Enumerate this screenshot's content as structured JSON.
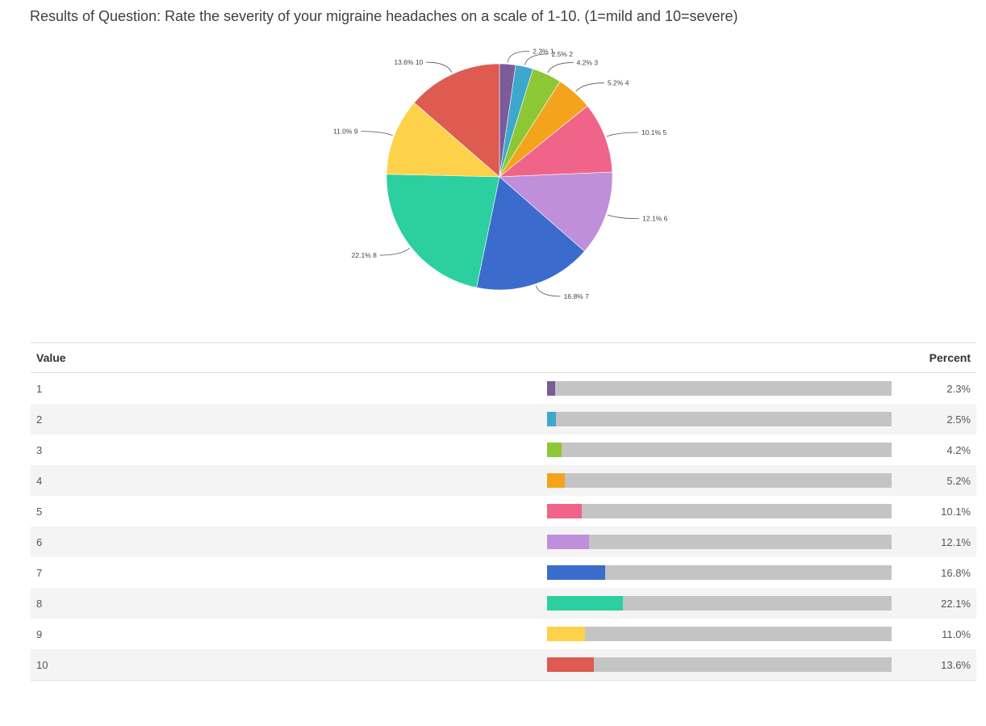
{
  "page": {
    "title": "Results of Question: Rate the severity of your migraine headaches on a scale of 1-10. (1=mild and 10=severe)"
  },
  "table": {
    "header_value": "Value",
    "header_percent": "Percent"
  },
  "chart_data": {
    "type": "pie",
    "categories": [
      "1",
      "2",
      "3",
      "4",
      "5",
      "6",
      "7",
      "8",
      "9",
      "10"
    ],
    "values": [
      2.3,
      2.5,
      4.2,
      5.2,
      10.1,
      12.1,
      16.8,
      22.1,
      11.0,
      13.6
    ],
    "percent_labels": [
      "2.3%",
      "2.5%",
      "4.2%",
      "5.2%",
      "10.1%",
      "12.1%",
      "16.8%",
      "22.1%",
      "11.0%",
      "13.6%"
    ],
    "colors": [
      "#7b5c99",
      "#3ea8cc",
      "#8dc734",
      "#f4a41c",
      "#f0648a",
      "#bf8fdc",
      "#3b6ccd",
      "#2ccf9f",
      "#fdd24a",
      "#dd5b51"
    ]
  }
}
